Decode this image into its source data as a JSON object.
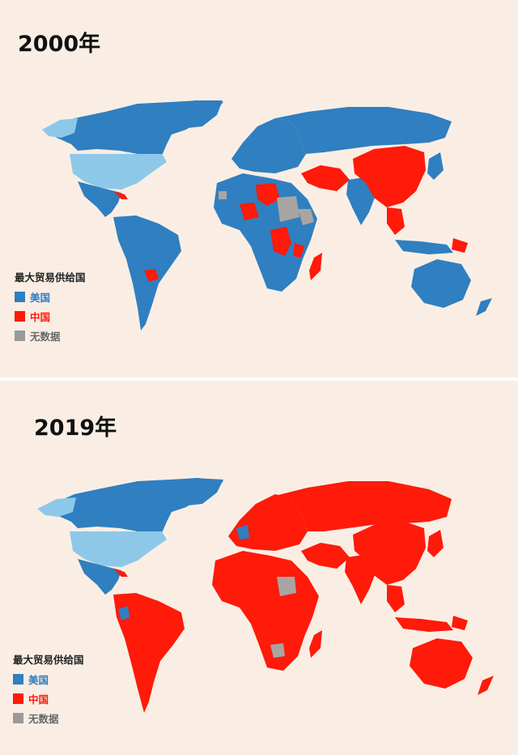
{
  "colors": {
    "background": "#faeee4",
    "usa": "#2f7fc1",
    "usa_light": "#8ec8e8",
    "china": "#ff1a0a",
    "no_data": "#a9a4a2"
  },
  "panels": [
    {
      "year_label": "2000年",
      "legend": {
        "title": "最大贸易供给国",
        "items": [
          {
            "label": "美国",
            "color": "#2f7fc1",
            "text_color": "#2f7fc1"
          },
          {
            "label": "中国",
            "color": "#ff1a0a",
            "text_color": "#ff1a0a"
          },
          {
            "label": "无数据",
            "color": "#9a9a9a",
            "text_color": "#666666"
          }
        ]
      }
    },
    {
      "year_label": "2019年",
      "legend": {
        "title": "最大贸易供给国",
        "items": [
          {
            "label": "美国",
            "color": "#2f7fc1",
            "text_color": "#2f7fc1"
          },
          {
            "label": "中国",
            "color": "#ff1a0a",
            "text_color": "#ff1a0a"
          },
          {
            "label": "无数据",
            "color": "#9a9a9a",
            "text_color": "#666666"
          }
        ]
      }
    }
  ]
}
